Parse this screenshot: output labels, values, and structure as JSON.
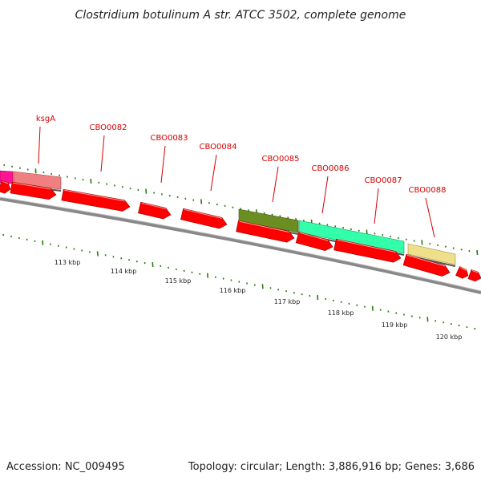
{
  "title": "Clostridium botulinum A str. ATCC 3502, complete genome",
  "accession": "Accession: NC_009495",
  "summary": "Topology: circular; Length: 3,886,916 bp; Genes: 3,686",
  "colors": {
    "gene_red": "#ff0000",
    "label_red": "#d40000",
    "tick_green": "#2a7a10",
    "backbone": "#888888",
    "magenta": "#ff1493",
    "pink": "#f08080",
    "olive": "#6b8e23",
    "aqua": "#33ffaa",
    "khaki": "#eee08a"
  },
  "genes": [
    {
      "name": "ksgA"
    },
    {
      "name": "CBO0082"
    },
    {
      "name": "CBO0083"
    },
    {
      "name": "CBO0084"
    },
    {
      "name": "CBO0085"
    },
    {
      "name": "CBO0086"
    },
    {
      "name": "CBO0087"
    },
    {
      "name": "CBO0088"
    }
  ],
  "kbp_labels": [
    "113 kbp",
    "114 kbp",
    "115 kbp",
    "116 kbp",
    "117 kbp",
    "118 kbp",
    "119 kbp",
    "120 kbp"
  ]
}
